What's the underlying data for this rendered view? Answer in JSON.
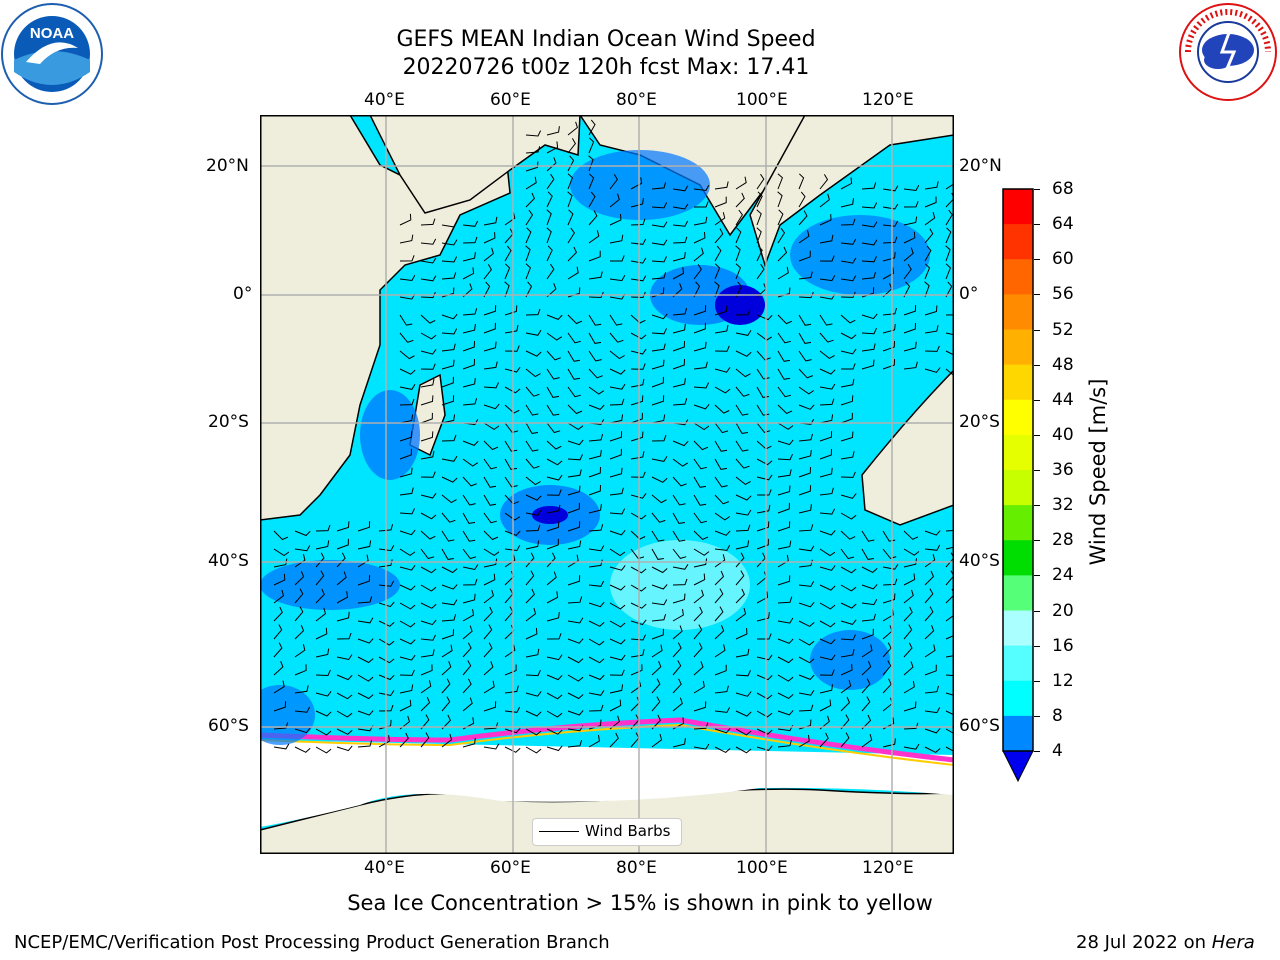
{
  "title_line1": "GEFS MEAN Indian Ocean Wind Speed",
  "title_line2": "20220726 t00z 120h fcst   Max: 17.41",
  "lon_labels": [
    "40°E",
    "60°E",
    "80°E",
    "100°E",
    "120°E"
  ],
  "lat_labels": [
    "20°N",
    "0°",
    "20°S",
    "40°S",
    "60°S"
  ],
  "colorbar": {
    "label": "Wind Speed [m/s]",
    "ticks": [
      "68",
      "64",
      "60",
      "56",
      "52",
      "48",
      "44",
      "40",
      "36",
      "32",
      "28",
      "24",
      "20",
      "16",
      "12",
      "8",
      "4"
    ],
    "colors": [
      "#ff0000",
      "#ff3300",
      "#ff6600",
      "#ff8c00",
      "#ffb000",
      "#ffd700",
      "#ffff00",
      "#e6ff00",
      "#c8ff00",
      "#66ee00",
      "#00dd00",
      "#55ff77",
      "#aaffff",
      "#55ffff",
      "#00ffff",
      "#0088ff",
      "#0000ee"
    ]
  },
  "legend_label": "Wind Barbs",
  "caption": "Sea Ice Concentration > 15% is shown in pink to yellow",
  "footer_left": "NCEP/EMC/Verification Post Processing Product Generation Branch",
  "footer_date": "28 Jul 2022 on ",
  "footer_host": "Hera",
  "logo_left_text": "NOAA",
  "logo_right_text": "NATIONAL WEATHER SERVICE"
}
